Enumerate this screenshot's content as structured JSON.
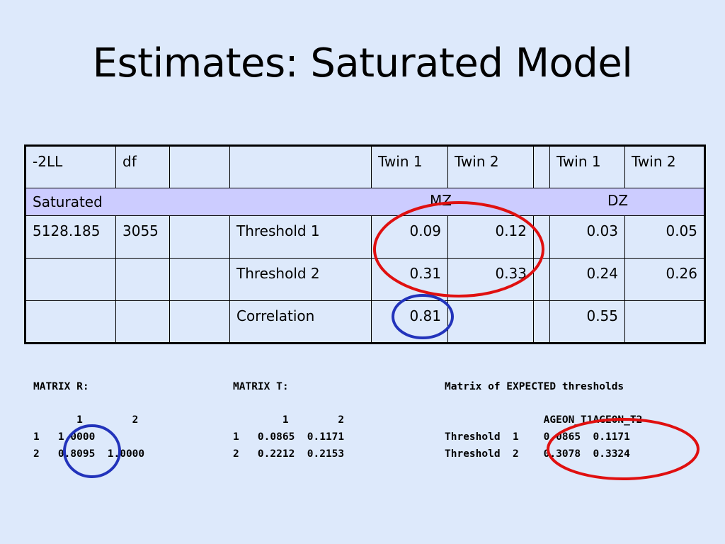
{
  "slide": {
    "title": "Estimates: Saturated Model"
  },
  "table": {
    "header": [
      "-2LL",
      "df",
      "",
      "",
      "Twin 1",
      "Twin 2",
      "",
      "Twin 1",
      "Twin 2"
    ],
    "group_row": {
      "label": "Saturated",
      "mz": "MZ",
      "dz": "DZ"
    },
    "rows": [
      [
        "5128.185",
        "3055",
        "",
        "Threshold 1",
        "0.09",
        "0.12",
        "",
        "0.03",
        "0.05"
      ],
      [
        "",
        "",
        "",
        "Threshold 2",
        "0.31",
        "0.33",
        "",
        "0.24",
        "0.26"
      ],
      [
        "",
        "",
        "",
        "Correlation",
        "0.81",
        "",
        "",
        "0.55",
        ""
      ]
    ]
  },
  "matrices": {
    "r": {
      "title": "MATRIX R:",
      "col_header": "       1        2",
      "row1": "1   1.0000",
      "row2": "2   0.8095  1.0000"
    },
    "t": {
      "title": "MATRIX T:",
      "col_header": "        1        2",
      "row1": "1   0.0865  0.1171",
      "row2": "2   0.2212  0.2153"
    },
    "expected": {
      "title": "Matrix of EXPECTED thresholds",
      "col_header": "                AGEON_T1AGEON_T2",
      "row1": "Threshold  1    0.0865  0.1171",
      "row2": "Threshold  2    0.3078  0.3324"
    }
  },
  "annotation_colors": {
    "red": "#e01010",
    "blue": "#2233bb"
  }
}
